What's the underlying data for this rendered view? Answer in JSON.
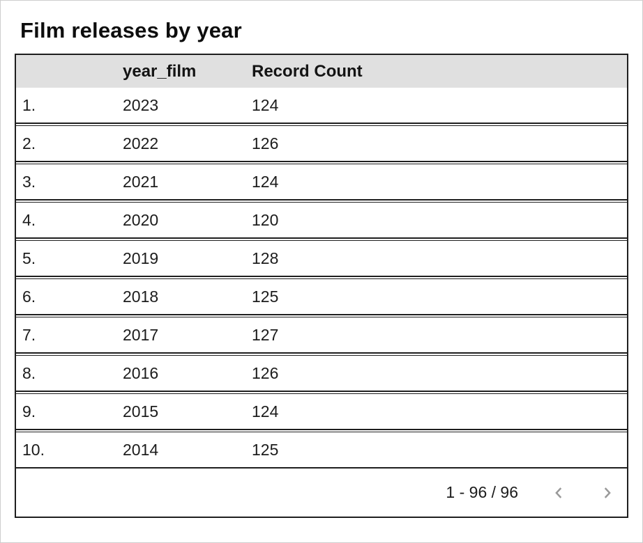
{
  "title": "Film releases by year",
  "table": {
    "columns": {
      "row_number_header": "",
      "dimension": "year_film",
      "metric": "Record Count"
    },
    "rows": [
      {
        "index": "1.",
        "year_film": "2023",
        "record_count": "124"
      },
      {
        "index": "2.",
        "year_film": "2022",
        "record_count": "126"
      },
      {
        "index": "3.",
        "year_film": "2021",
        "record_count": "124"
      },
      {
        "index": "4.",
        "year_film": "2020",
        "record_count": "120"
      },
      {
        "index": "5.",
        "year_film": "2019",
        "record_count": "128"
      },
      {
        "index": "6.",
        "year_film": "2018",
        "record_count": "125"
      },
      {
        "index": "7.",
        "year_film": "2017",
        "record_count": "127"
      },
      {
        "index": "8.",
        "year_film": "2016",
        "record_count": "126"
      },
      {
        "index": "9.",
        "year_film": "2015",
        "record_count": "124"
      },
      {
        "index": "10.",
        "year_film": "2014",
        "record_count": "125"
      }
    ]
  },
  "pagination": {
    "range_label": "1 - 96 / 96",
    "prev_icon": "chevron-left-icon",
    "next_icon": "chevron-right-icon"
  },
  "colors": {
    "header_background": "#e0e0e0",
    "table_border": "#1e1e1e",
    "text": "#1c1c1c",
    "chevron": "#999999",
    "page_border": "#cdcdcd"
  }
}
